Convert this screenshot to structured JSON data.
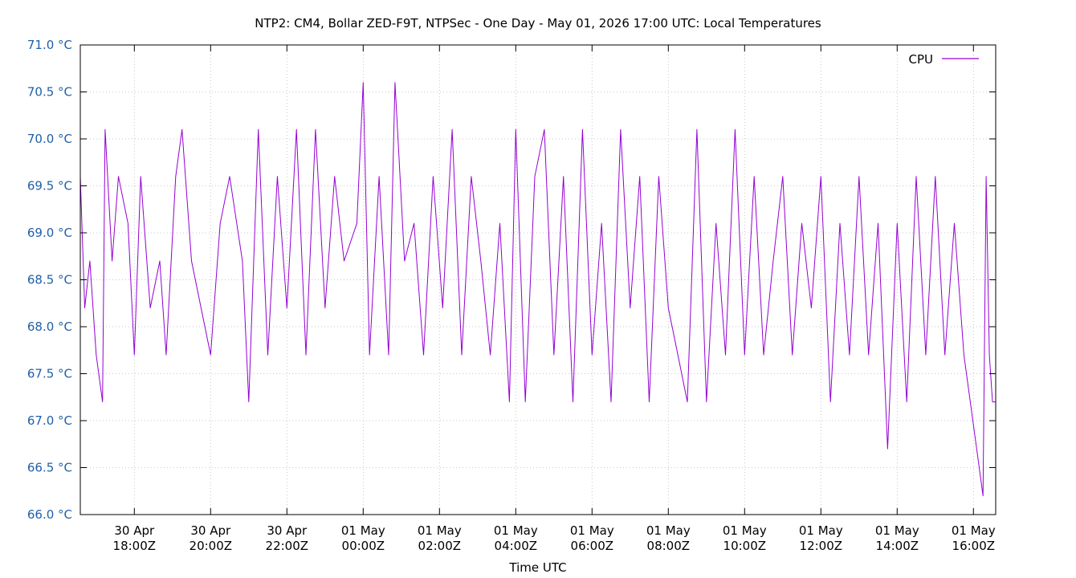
{
  "chart_data": {
    "type": "line",
    "title": "NTP2: CM4, Bollar ZED-F9T, NTPSec - One Day - May 01, 2026 17:00 UTC: Local Temperatures",
    "xlabel": "Time UTC",
    "ylabel": "",
    "grid": true,
    "legend_position": "top-right",
    "x_range": [
      "2026-04-30T16:35Z",
      "2026-05-01T16:35Z"
    ],
    "ylim": [
      66.0,
      71.0
    ],
    "y_ticks": [
      "66.0 °C",
      "66.5 °C",
      "67.0 °C",
      "67.5 °C",
      "68.0 °C",
      "68.5 °C",
      "69.0 °C",
      "69.5 °C",
      "70.0 °C",
      "70.5 °C",
      "71.0 °C"
    ],
    "y_tick_values": [
      66.0,
      66.5,
      67.0,
      67.5,
      68.0,
      68.5,
      69.0,
      69.5,
      70.0,
      70.5,
      71.0
    ],
    "x_ticks": [
      {
        "time": "2026-04-30T18:00Z",
        "line1": "30 Apr",
        "line2": "18:00Z"
      },
      {
        "time": "2026-04-30T20:00Z",
        "line1": "30 Apr",
        "line2": "20:00Z"
      },
      {
        "time": "2026-04-30T22:00Z",
        "line1": "30 Apr",
        "line2": "22:00Z"
      },
      {
        "time": "2026-05-01T00:00Z",
        "line1": "01 May",
        "line2": "00:00Z"
      },
      {
        "time": "2026-05-01T02:00Z",
        "line1": "01 May",
        "line2": "02:00Z"
      },
      {
        "time": "2026-05-01T04:00Z",
        "line1": "01 May",
        "line2": "04:00Z"
      },
      {
        "time": "2026-05-01T06:00Z",
        "line1": "01 May",
        "line2": "06:00Z"
      },
      {
        "time": "2026-05-01T08:00Z",
        "line1": "01 May",
        "line2": "08:00Z"
      },
      {
        "time": "2026-05-01T10:00Z",
        "line1": "01 May",
        "line2": "10:00Z"
      },
      {
        "time": "2026-05-01T12:00Z",
        "line1": "01 May",
        "line2": "12:00Z"
      },
      {
        "time": "2026-05-01T14:00Z",
        "line1": "01 May",
        "line2": "14:00Z"
      },
      {
        "time": "2026-05-01T16:00Z",
        "line1": "01 May",
        "line2": "16:00Z"
      }
    ],
    "series": [
      {
        "name": "CPU",
        "color": "#9400d3",
        "points": [
          [
            "2026-04-30T16:35Z",
            69.6
          ],
          [
            "2026-04-30T16:42Z",
            68.2
          ],
          [
            "2026-04-30T16:50Z",
            68.7
          ],
          [
            "2026-04-30T17:00Z",
            67.7
          ],
          [
            "2026-04-30T17:10Z",
            67.2
          ],
          [
            "2026-04-30T17:14Z",
            70.1
          ],
          [
            "2026-04-30T17:25Z",
            68.7
          ],
          [
            "2026-04-30T17:35Z",
            69.6
          ],
          [
            "2026-04-30T17:50Z",
            69.1
          ],
          [
            "2026-04-30T18:00Z",
            67.7
          ],
          [
            "2026-04-30T18:10Z",
            69.6
          ],
          [
            "2026-04-30T18:25Z",
            68.2
          ],
          [
            "2026-04-30T18:40Z",
            68.7
          ],
          [
            "2026-04-30T18:50Z",
            67.7
          ],
          [
            "2026-04-30T19:05Z",
            69.6
          ],
          [
            "2026-04-30T19:15Z",
            70.1
          ],
          [
            "2026-04-30T19:30Z",
            68.7
          ],
          [
            "2026-04-30T19:45Z",
            68.2
          ],
          [
            "2026-04-30T20:00Z",
            67.7
          ],
          [
            "2026-04-30T20:15Z",
            69.1
          ],
          [
            "2026-04-30T20:30Z",
            69.6
          ],
          [
            "2026-04-30T20:50Z",
            68.7
          ],
          [
            "2026-04-30T21:00Z",
            67.2
          ],
          [
            "2026-04-30T21:15Z",
            70.1
          ],
          [
            "2026-04-30T21:30Z",
            67.7
          ],
          [
            "2026-04-30T21:45Z",
            69.6
          ],
          [
            "2026-04-30T22:00Z",
            68.2
          ],
          [
            "2026-04-30T22:15Z",
            70.1
          ],
          [
            "2026-04-30T22:30Z",
            67.7
          ],
          [
            "2026-04-30T22:45Z",
            70.1
          ],
          [
            "2026-04-30T23:00Z",
            68.2
          ],
          [
            "2026-04-30T23:15Z",
            69.6
          ],
          [
            "2026-04-30T23:30Z",
            68.7
          ],
          [
            "2026-04-30T23:50Z",
            69.1
          ],
          [
            "2026-05-01T00:00Z",
            70.6
          ],
          [
            "2026-05-01T00:10Z",
            67.7
          ],
          [
            "2026-05-01T00:25Z",
            69.6
          ],
          [
            "2026-05-01T00:40Z",
            67.7
          ],
          [
            "2026-05-01T00:50Z",
            70.6
          ],
          [
            "2026-05-01T01:05Z",
            68.7
          ],
          [
            "2026-05-01T01:20Z",
            69.1
          ],
          [
            "2026-05-01T01:35Z",
            67.7
          ],
          [
            "2026-05-01T01:50Z",
            69.6
          ],
          [
            "2026-05-01T02:05Z",
            68.2
          ],
          [
            "2026-05-01T02:20Z",
            70.1
          ],
          [
            "2026-05-01T02:35Z",
            67.7
          ],
          [
            "2026-05-01T02:50Z",
            69.6
          ],
          [
            "2026-05-01T03:05Z",
            68.7
          ],
          [
            "2026-05-01T03:20Z",
            67.7
          ],
          [
            "2026-05-01T03:35Z",
            69.1
          ],
          [
            "2026-05-01T03:50Z",
            67.2
          ],
          [
            "2026-05-01T04:00Z",
            70.1
          ],
          [
            "2026-05-01T04:15Z",
            67.2
          ],
          [
            "2026-05-01T04:30Z",
            69.6
          ],
          [
            "2026-05-01T04:45Z",
            70.1
          ],
          [
            "2026-05-01T05:00Z",
            67.7
          ],
          [
            "2026-05-01T05:15Z",
            69.6
          ],
          [
            "2026-05-01T05:30Z",
            67.2
          ],
          [
            "2026-05-01T05:45Z",
            70.1
          ],
          [
            "2026-05-01T06:00Z",
            67.7
          ],
          [
            "2026-05-01T06:15Z",
            69.1
          ],
          [
            "2026-05-01T06:30Z",
            67.2
          ],
          [
            "2026-05-01T06:45Z",
            70.1
          ],
          [
            "2026-05-01T07:00Z",
            68.2
          ],
          [
            "2026-05-01T07:15Z",
            69.6
          ],
          [
            "2026-05-01T07:30Z",
            67.2
          ],
          [
            "2026-05-01T07:45Z",
            69.6
          ],
          [
            "2026-05-01T08:00Z",
            68.2
          ],
          [
            "2026-05-01T08:15Z",
            67.7
          ],
          [
            "2026-05-01T08:30Z",
            67.2
          ],
          [
            "2026-05-01T08:45Z",
            70.1
          ],
          [
            "2026-05-01T09:00Z",
            67.2
          ],
          [
            "2026-05-01T09:15Z",
            69.1
          ],
          [
            "2026-05-01T09:30Z",
            67.7
          ],
          [
            "2026-05-01T09:45Z",
            70.1
          ],
          [
            "2026-05-01T10:00Z",
            67.7
          ],
          [
            "2026-05-01T10:15Z",
            69.6
          ],
          [
            "2026-05-01T10:30Z",
            67.7
          ],
          [
            "2026-05-01T10:45Z",
            68.7
          ],
          [
            "2026-05-01T11:00Z",
            69.6
          ],
          [
            "2026-05-01T11:15Z",
            67.7
          ],
          [
            "2026-05-01T11:30Z",
            69.1
          ],
          [
            "2026-05-01T11:45Z",
            68.2
          ],
          [
            "2026-05-01T12:00Z",
            69.6
          ],
          [
            "2026-05-01T12:15Z",
            67.2
          ],
          [
            "2026-05-01T12:30Z",
            69.1
          ],
          [
            "2026-05-01T12:45Z",
            67.7
          ],
          [
            "2026-05-01T13:00Z",
            69.6
          ],
          [
            "2026-05-01T13:15Z",
            67.7
          ],
          [
            "2026-05-01T13:30Z",
            69.1
          ],
          [
            "2026-05-01T13:45Z",
            66.7
          ],
          [
            "2026-05-01T14:00Z",
            69.1
          ],
          [
            "2026-05-01T14:15Z",
            67.2
          ],
          [
            "2026-05-01T14:30Z",
            69.6
          ],
          [
            "2026-05-01T14:45Z",
            67.7
          ],
          [
            "2026-05-01T15:00Z",
            69.6
          ],
          [
            "2026-05-01T15:15Z",
            67.7
          ],
          [
            "2026-05-01T15:30Z",
            69.1
          ],
          [
            "2026-05-01T15:45Z",
            67.7
          ],
          [
            "2026-05-01T16:05Z",
            66.7
          ],
          [
            "2026-05-01T16:15Z",
            66.2
          ],
          [
            "2026-05-01T16:20Z",
            69.6
          ],
          [
            "2026-05-01T16:25Z",
            67.7
          ],
          [
            "2026-05-01T16:30Z",
            67.2
          ],
          [
            "2026-05-01T16:35Z",
            67.2
          ]
        ]
      }
    ]
  }
}
